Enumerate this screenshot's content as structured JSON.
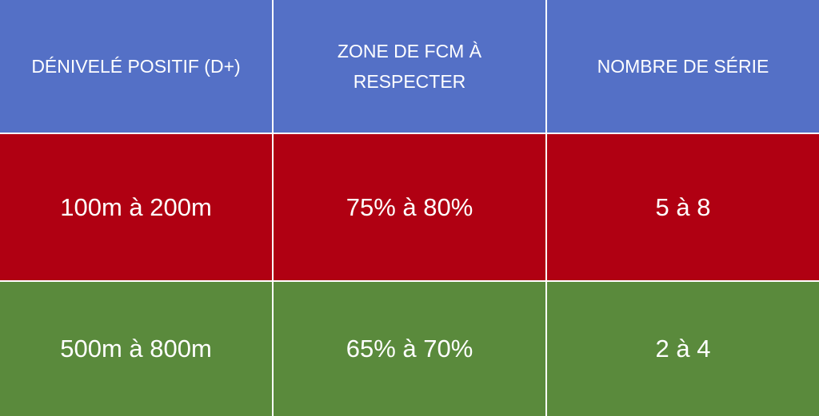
{
  "table": {
    "header": [
      "DÉNIVELÉ POSITIF (D+)",
      "ZONE DE FCM À RESPECTER",
      "NOMBRE DE SÉRIE"
    ],
    "rows": [
      [
        "100m à 200m",
        "75% à 80%",
        "5 à 8"
      ],
      [
        "500m à 800m",
        "65% à 70%",
        "2 à 4"
      ]
    ]
  }
}
